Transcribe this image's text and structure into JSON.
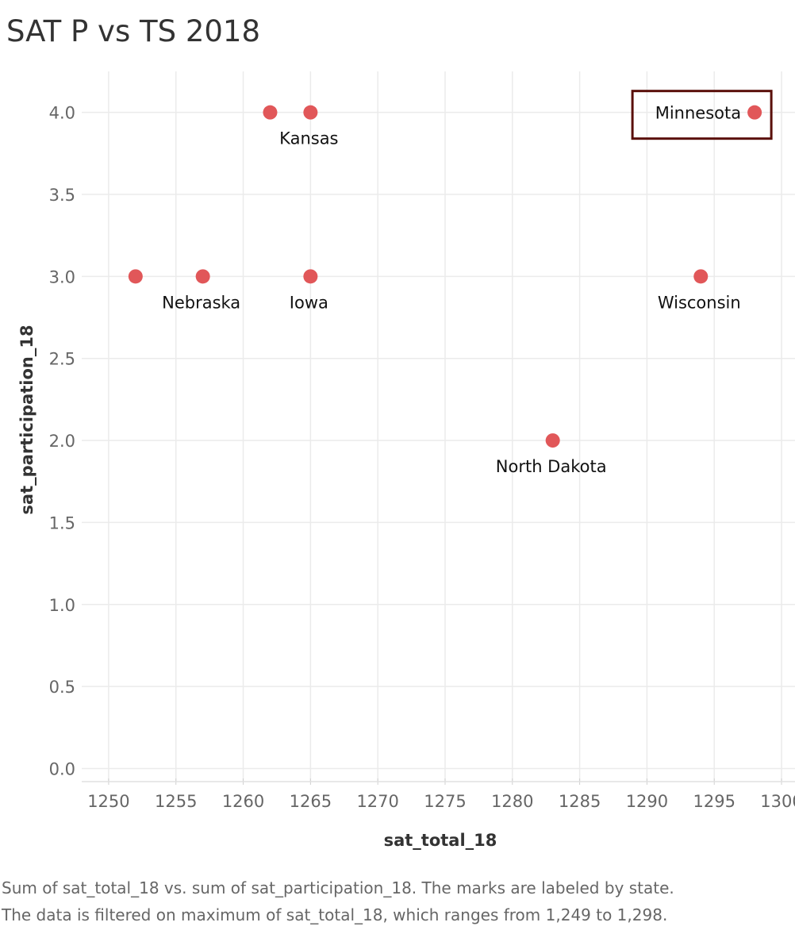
{
  "chart_data": {
    "type": "scatter",
    "title": "SAT P vs TS 2018",
    "xlabel": "sat_total_18",
    "ylabel": "sat_participation_18",
    "xlim": [
      1248,
      1301
    ],
    "ylim": [
      -0.08,
      4.25
    ],
    "xticks": [
      1250,
      1255,
      1260,
      1265,
      1270,
      1275,
      1280,
      1285,
      1290,
      1295,
      1300
    ],
    "xtick_labels": [
      "1250",
      "1255",
      "1260",
      "1265",
      "1270",
      "1275",
      "1280",
      "1285",
      "1290",
      "1295",
      "1300"
    ],
    "yticks": [
      0,
      0.5,
      1,
      1.5,
      2,
      2.5,
      3,
      3.5,
      4
    ],
    "ytick_labels": [
      "0.0",
      "0.5",
      "1.0",
      "1.5",
      "2.0",
      "2.5",
      "3.0",
      "3.5",
      "4.0"
    ],
    "grid": true,
    "marker_color": "#e15759",
    "points": [
      {
        "x": 1252,
        "y": 3,
        "label": ""
      },
      {
        "x": 1257,
        "y": 3,
        "label": "Nebraska"
      },
      {
        "x": 1262,
        "y": 4,
        "label": ""
      },
      {
        "x": 1265,
        "y": 4,
        "label": "Kansas"
      },
      {
        "x": 1265,
        "y": 3,
        "label": "Iowa"
      },
      {
        "x": 1283,
        "y": 2,
        "label": "North Dakota"
      },
      {
        "x": 1294,
        "y": 3,
        "label": "Wisconsin"
      },
      {
        "x": 1298,
        "y": 4,
        "label": "Minnesota",
        "highlighted": true
      }
    ],
    "highlight_color": "#5a0f0a"
  },
  "caption": {
    "line1": "Sum of sat_total_18 vs. sum of sat_participation_18.  The marks are labeled by state.",
    "line2": "The data is filtered on maximum of sat_total_18, which ranges from 1,249 to 1,298."
  }
}
